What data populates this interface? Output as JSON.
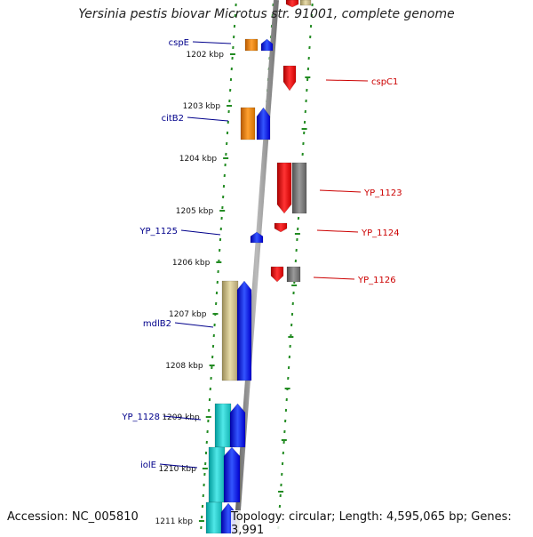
{
  "title": "Yersinia pestis biovar Microtus str. 91001, complete genome",
  "footer": {
    "accession": "Accession: NC_005810",
    "stats": "Topology: circular; Length: 4,595,065 bp; Genes: 3,991"
  },
  "colors": {
    "forward_strand": "#0000ff",
    "reverse_strand": "#ff0000",
    "forward_label": "#00008b",
    "reverse_label": "#cc0000",
    "backbone": "#888888",
    "tick": "#228b22",
    "kbp_label": "#111111"
  },
  "ruler": {
    "labels": [
      "1202 kbp",
      "1203 kbp",
      "1204 kbp",
      "1205 kbp",
      "1206 kbp",
      "1207 kbp",
      "1208 kbp",
      "1209 kbp",
      "1210 kbp",
      "1211 kbp"
    ]
  },
  "forward_genes": [
    {
      "name": "cspE",
      "feature_color": "#ff8c00"
    },
    {
      "name": "citB2",
      "feature_color": "#ff8c00"
    },
    {
      "name": "YP_1125",
      "feature_color": null
    },
    {
      "name": "mdlB2",
      "feature_color": "#c8b878"
    },
    {
      "name": "YP_1128",
      "feature_color": "#20c8c8"
    },
    {
      "name": "iolE",
      "feature_color": "#20c8c8"
    }
  ],
  "reverse_genes": [
    {
      "name": "cspC1",
      "feature_color": null
    },
    {
      "name": "YP_1123",
      "feature_color": "#707070"
    },
    {
      "name": "YP_1124",
      "feature_color": null
    },
    {
      "name": "YP_1126",
      "feature_color": "#707070"
    }
  ]
}
